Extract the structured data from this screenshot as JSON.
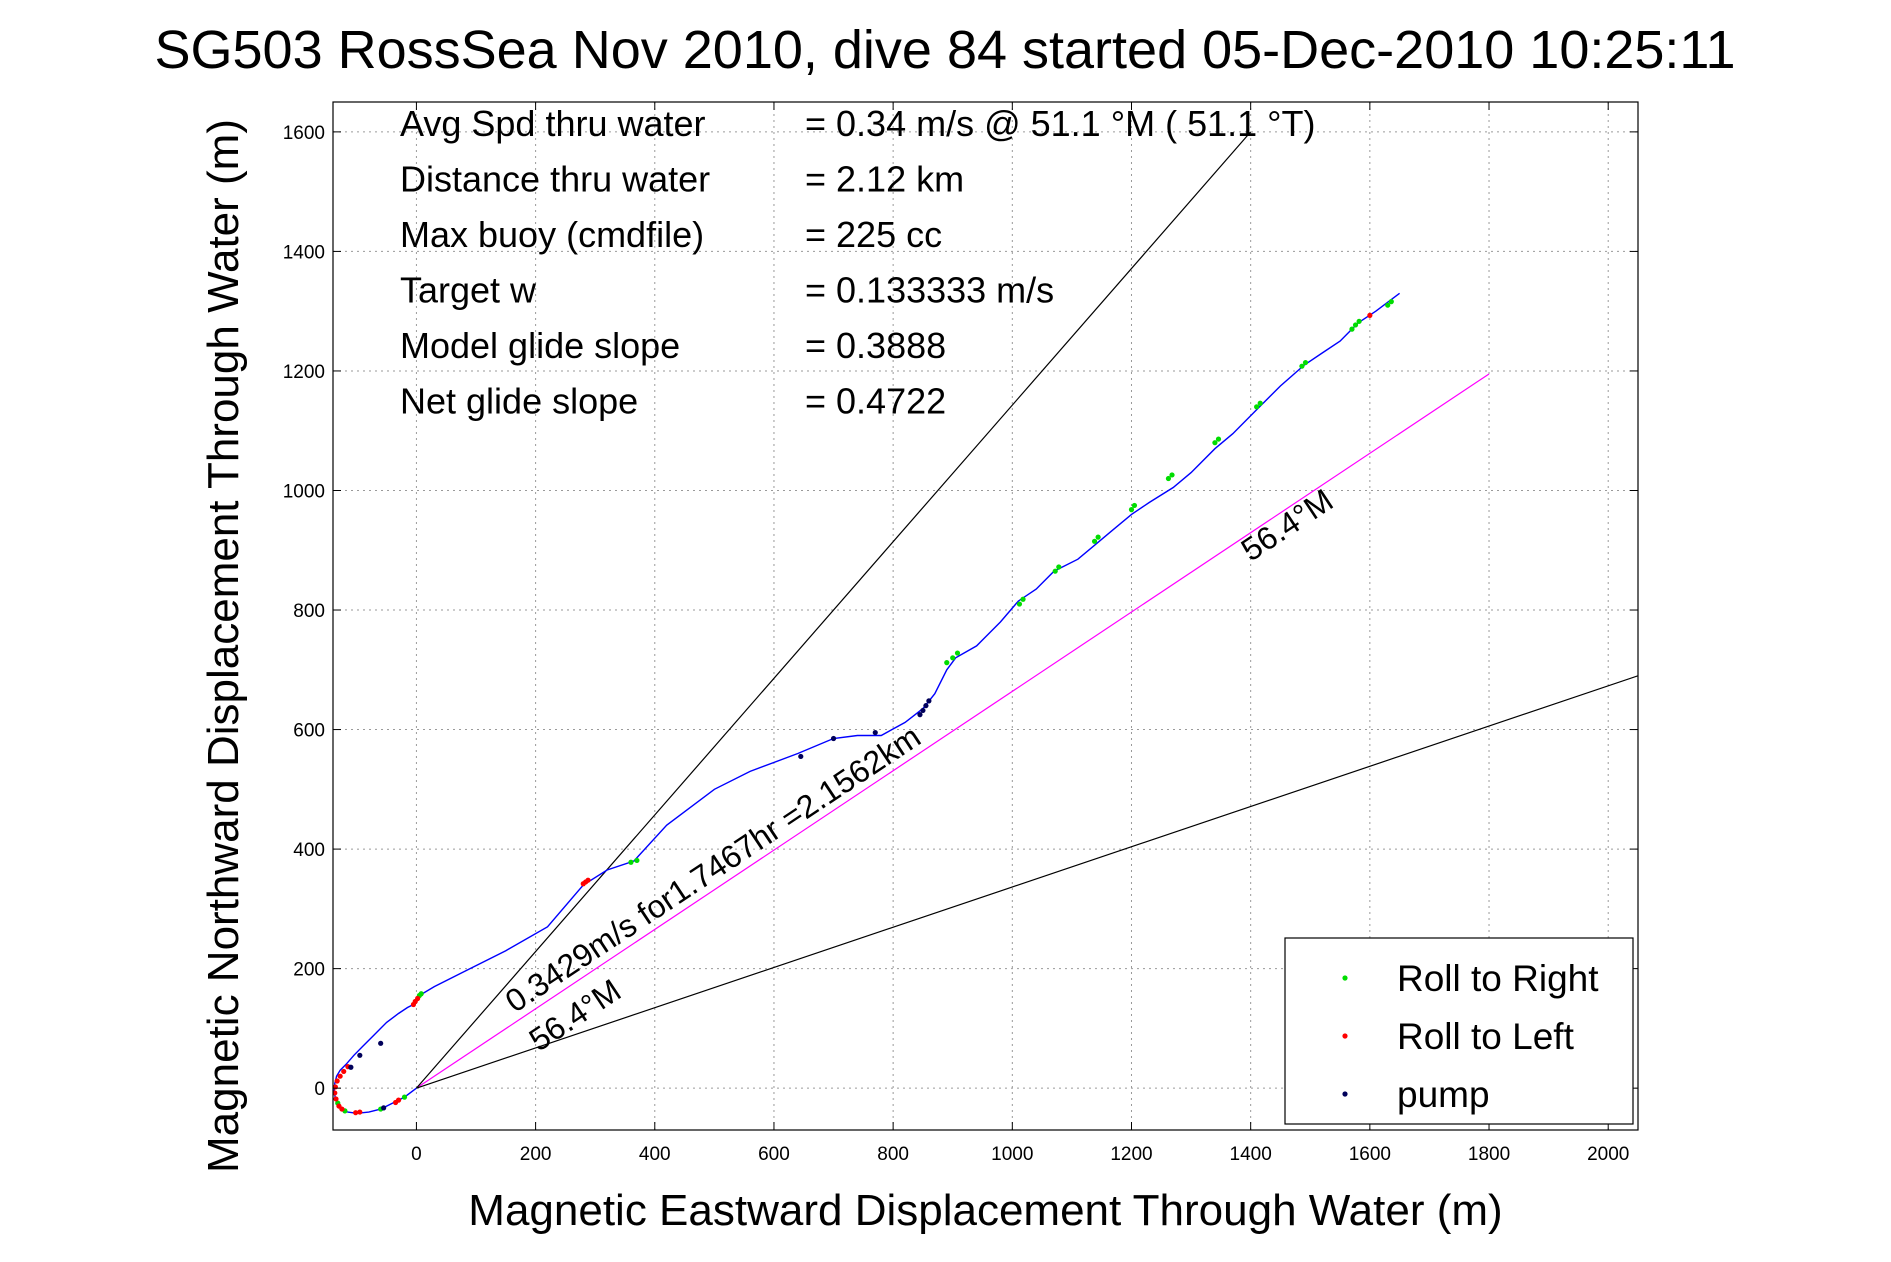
{
  "chart_data": {
    "type": "line",
    "title": "SG503 RossSea Nov 2010, dive 84 started 05-Dec-2010 10:25:11",
    "xlabel": "Magnetic Eastward Displacement Through Water (m)",
    "ylabel": "Magnetic Northward Displacement Through Water (m)",
    "xlim": [
      -140,
      2050
    ],
    "ylim": [
      -70,
      1650
    ],
    "xticks": [
      0,
      200,
      400,
      600,
      800,
      1000,
      1200,
      1400,
      1600,
      1800,
      2000
    ],
    "yticks": [
      0,
      200,
      400,
      600,
      800,
      1000,
      1200,
      1400,
      1600
    ],
    "grid": true,
    "legend_position": "bottom-right",
    "info_lines": [
      {
        "label": "Avg Spd thru water",
        "value": "=  0.34 m/s @  51.1 °M ( 51.1 °T)"
      },
      {
        "label": "Distance thru water",
        "value": "=  2.12 km"
      },
      {
        "label": "Max buoy (cmdfile)",
        "value": "= 225 cc"
      },
      {
        "label": "Target w",
        "value": "= 0.133333 m/s"
      },
      {
        "label": "Model glide slope",
        "value": "= 0.3888"
      },
      {
        "label": "Net glide slope",
        "value": "= 0.4722"
      }
    ],
    "annotations": [
      {
        "text": "0.3429m/s for1.7467hr =2.1562km",
        "x": 165,
        "y": 125,
        "angle_deg": 33.6
      },
      {
        "text": "56.4°M",
        "x": 205,
        "y": 60,
        "angle_deg": 33.6
      },
      {
        "text": "56.4°M",
        "x": 1400,
        "y": 880,
        "angle_deg": 33.6
      }
    ],
    "reference_lines": [
      {
        "name": "heading",
        "color": "#ff00ff",
        "x": [
          0,
          1800
        ],
        "y": [
          0,
          1195
        ]
      },
      {
        "name": "bound-upper",
        "color": "#000000",
        "x": [
          0,
          1400
        ],
        "y": [
          0,
          1600
        ]
      },
      {
        "name": "bound-lower",
        "color": "#000000",
        "x": [
          0,
          2050
        ],
        "y": [
          0,
          690
        ]
      }
    ],
    "series": [
      {
        "name": "track",
        "color": "#0000ff",
        "x": [
          0,
          -20,
          -40,
          -60,
          -80,
          -100,
          -115,
          -125,
          -132,
          -136,
          -138,
          -137,
          -134,
          -128,
          -118,
          -105,
          -90,
          -70,
          -50,
          -30,
          -15,
          -5,
          0,
          5,
          30,
          80,
          150,
          220,
          280,
          320,
          365,
          420,
          500,
          560,
          640,
          700,
          740,
          780,
          820,
          850,
          870,
          890,
          905,
          940,
          980,
          1010,
          1040,
          1070,
          1110,
          1140,
          1170,
          1200,
          1230,
          1270,
          1300,
          1340,
          1370,
          1410,
          1450,
          1490,
          1520,
          1550,
          1580,
          1610,
          1650
        ],
        "y": [
          0,
          -15,
          -25,
          -35,
          -40,
          -42,
          -40,
          -36,
          -28,
          -18,
          -5,
          8,
          20,
          30,
          40,
          55,
          70,
          90,
          110,
          125,
          135,
          140,
          145,
          155,
          170,
          195,
          230,
          270,
          340,
          365,
          380,
          440,
          500,
          530,
          560,
          585,
          590,
          590,
          612,
          635,
          660,
          700,
          720,
          740,
          780,
          815,
          835,
          865,
          885,
          910,
          935,
          960,
          980,
          1005,
          1030,
          1070,
          1095,
          1135,
          1175,
          1210,
          1230,
          1250,
          1280,
          1300,
          1330
        ]
      },
      {
        "name": "Roll to Right",
        "color": "#00dd00",
        "x": [
          -20,
          -60,
          -120,
          -132,
          5,
          8,
          360,
          370,
          890,
          900,
          908,
          1012,
          1018,
          1072,
          1078,
          1138,
          1144,
          1200,
          1205,
          1262,
          1268,
          1340,
          1346,
          1410,
          1416,
          1486,
          1492,
          1570,
          1576,
          1582,
          1630,
          1636
        ],
        "y": [
          -15,
          -35,
          -38,
          -25,
          155,
          158,
          378,
          381,
          712,
          720,
          728,
          810,
          818,
          865,
          872,
          915,
          922,
          968,
          975,
          1020,
          1026,
          1080,
          1086,
          1140,
          1146,
          1208,
          1214,
          1270,
          1277,
          1283,
          1310,
          1316
        ]
      },
      {
        "name": "Roll to Left",
        "color": "#ff0000",
        "x": [
          -30,
          -35,
          -95,
          -102,
          -125,
          -130,
          -135,
          -137,
          -136,
          -133,
          -128,
          -122,
          -115,
          -5,
          -2,
          2,
          280,
          284,
          288,
          1600
        ],
        "y": [
          -20,
          -24,
          -40,
          -41,
          -35,
          -30,
          -18,
          -8,
          2,
          12,
          20,
          28,
          36,
          140,
          145,
          150,
          342,
          345,
          348,
          1293
        ]
      },
      {
        "name": "pump",
        "color": "#00005a",
        "x": [
          -55,
          -110,
          -95,
          -60,
          645,
          700,
          770,
          845,
          850,
          855,
          860
        ],
        "y": [
          -33,
          35,
          55,
          75,
          555,
          585,
          595,
          625,
          632,
          640,
          648
        ]
      }
    ],
    "legend": [
      {
        "label": "Roll to Right",
        "color": "#00dd00"
      },
      {
        "label": "Roll to Left",
        "color": "#ff0000"
      },
      {
        "label": "pump",
        "color": "#00005a"
      }
    ]
  }
}
